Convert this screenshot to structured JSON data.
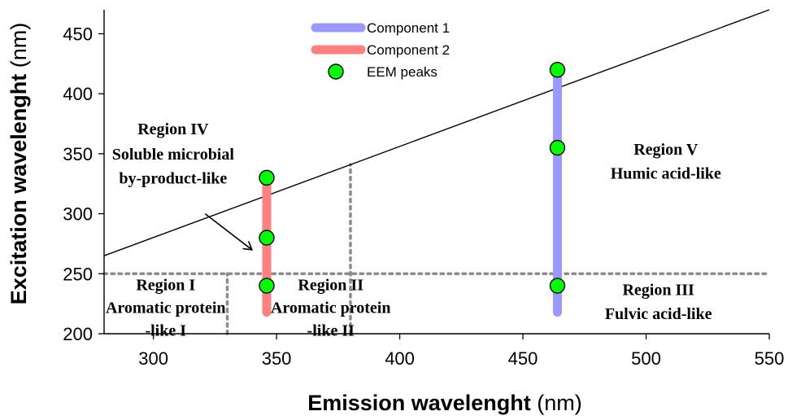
{
  "chart_data": {
    "type": "scatter",
    "xlabel": "Emission wavelenght",
    "xlabel_unit": "(nm)",
    "ylabel": "Excitation wavelenght",
    "ylabel_unit": "(nm)",
    "xlim": [
      280,
      550
    ],
    "ylim": [
      200,
      470
    ],
    "x_ticks": [
      300,
      350,
      400,
      450,
      500,
      550
    ],
    "y_ticks": [
      200,
      250,
      300,
      350,
      400,
      450
    ],
    "grid": false,
    "legend_position": "top-center",
    "legend": [
      {
        "label": "Component 1",
        "marker": "bar",
        "color": "#9999ff"
      },
      {
        "label": "Component 2",
        "marker": "bar",
        "color": "#ff8080"
      },
      {
        "label": "EEM peaks",
        "marker": "circle",
        "color": "#00ff00"
      }
    ],
    "components": [
      {
        "name": "Component 1",
        "x": 464,
        "y_range": [
          218,
          420
        ],
        "color": "#9999ff"
      },
      {
        "name": "Component 2",
        "x": 346,
        "y_range": [
          218,
          330
        ],
        "color": "#ff8080"
      }
    ],
    "eem_peaks": {
      "name": "EEM peaks",
      "color": "#00ff00",
      "points": [
        {
          "x": 346,
          "y": 330
        },
        {
          "x": 346,
          "y": 280
        },
        {
          "x": 346,
          "y": 240
        },
        {
          "x": 464,
          "y": 420
        },
        {
          "x": 464,
          "y": 355
        },
        {
          "x": 464,
          "y": 240
        }
      ]
    },
    "diagonal_line": {
      "from": {
        "x": 280,
        "y": 265
      },
      "to": {
        "x": 550,
        "y": 470
      }
    },
    "dotted_lines": [
      {
        "x": [
          280,
          550
        ],
        "y": [
          250,
          250
        ]
      },
      {
        "x": [
          330,
          330
        ],
        "y": [
          200,
          250
        ]
      },
      {
        "x": [
          380,
          380
        ],
        "y": [
          200,
          341
        ]
      }
    ],
    "regions": [
      {
        "name": "Region I",
        "lines": [
          "Region I",
          "Aromatic protein",
          "-like I"
        ],
        "x": 305,
        "y": [
          241,
          222,
          203
        ]
      },
      {
        "name": "Region II",
        "lines": [
          "Region II",
          "Aromatic protein",
          "-like II"
        ],
        "x": 372,
        "y": [
          241,
          222,
          203
        ]
      },
      {
        "name": "Region III",
        "lines": [
          "Region III",
          "Fulvic acid-like"
        ],
        "x": 505,
        "y": [
          237,
          217
        ]
      },
      {
        "name": "Region IV",
        "lines": [
          "Region IV",
          "Soluble microbial",
          "by-product-like"
        ],
        "x": 308,
        "y": [
          371,
          350,
          330
        ]
      },
      {
        "name": "Region V",
        "lines": [
          "Region V",
          "Humic acid-like"
        ],
        "x": 508,
        "y": [
          354,
          334
        ]
      }
    ],
    "arrow": {
      "from": {
        "x": 321,
        "y": 300
      },
      "to": {
        "x": 340,
        "y": 270
      }
    }
  }
}
